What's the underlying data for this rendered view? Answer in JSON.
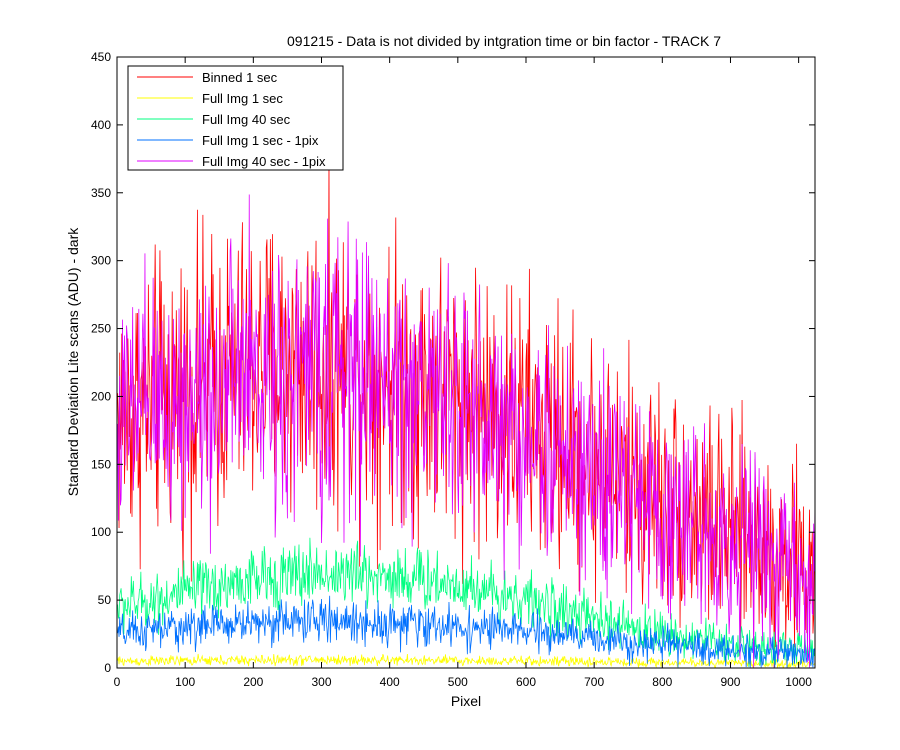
{
  "chart_data": {
    "type": "line",
    "title": "091215 - Data is not divided by intgration time or bin factor - TRACK 7",
    "xlabel": "Pixel",
    "ylabel": "Standard Deviation Lite scans (ADU) - dark",
    "xlim": [
      0,
      1024
    ],
    "ylim": [
      0,
      450
    ],
    "xticks": [
      "0",
      "100",
      "200",
      "300",
      "400",
      "500",
      "600",
      "700",
      "800",
      "900",
      "1000"
    ],
    "yticks": [
      "0",
      "50",
      "100",
      "150",
      "200",
      "250",
      "300",
      "350",
      "400",
      "450"
    ],
    "grid": false,
    "legend_position": "top-left",
    "series": [
      {
        "name": "Binned 1 sec",
        "color": "#ff0000",
        "trend_points": [
          [
            0,
            185
          ],
          [
            100,
            205
          ],
          [
            200,
            220
          ],
          [
            300,
            225
          ],
          [
            400,
            215
          ],
          [
            500,
            200
          ],
          [
            600,
            180
          ],
          [
            700,
            150
          ],
          [
            800,
            125
          ],
          [
            900,
            100
          ],
          [
            1024,
            70
          ]
        ],
        "noise_amplitude": 55
      },
      {
        "name": "Full Img 1 sec",
        "color": "#ffff00",
        "trend_points": [
          [
            0,
            5
          ],
          [
            300,
            6
          ],
          [
            600,
            5
          ],
          [
            1024,
            3
          ]
        ],
        "noise_amplitude": 2
      },
      {
        "name": "Full Img 40 sec",
        "color": "#00ff80",
        "trend_points": [
          [
            0,
            45
          ],
          [
            100,
            55
          ],
          [
            200,
            65
          ],
          [
            300,
            70
          ],
          [
            400,
            68
          ],
          [
            500,
            62
          ],
          [
            600,
            50
          ],
          [
            700,
            35
          ],
          [
            800,
            25
          ],
          [
            900,
            18
          ],
          [
            1024,
            13
          ]
        ],
        "noise_amplitude": 12
      },
      {
        "name": "Full Img 1 sec - 1pix",
        "color": "#0070ff",
        "trend_points": [
          [
            0,
            25
          ],
          [
            100,
            30
          ],
          [
            200,
            34
          ],
          [
            300,
            35
          ],
          [
            400,
            33
          ],
          [
            500,
            30
          ],
          [
            600,
            27
          ],
          [
            700,
            22
          ],
          [
            800,
            17
          ],
          [
            900,
            13
          ],
          [
            1024,
            10
          ]
        ],
        "noise_amplitude": 8
      },
      {
        "name": "Full Img 40 sec - 1pix",
        "color": "#e000ff",
        "trend_points": [
          [
            0,
            180
          ],
          [
            100,
            200
          ],
          [
            200,
            215
          ],
          [
            300,
            220
          ],
          [
            400,
            210
          ],
          [
            500,
            195
          ],
          [
            600,
            170
          ],
          [
            700,
            140
          ],
          [
            800,
            115
          ],
          [
            900,
            95
          ],
          [
            1024,
            65
          ]
        ],
        "noise_amplitude": 50
      }
    ]
  }
}
